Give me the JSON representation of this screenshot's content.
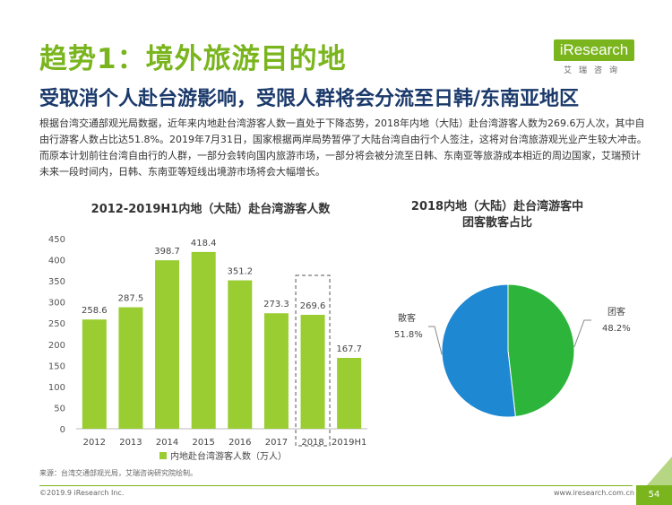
{
  "header": {
    "title": "趋势1：境外旅游目的地",
    "subtitle": "受取消个人赴台游影响，受限人群将会分流至日韩/东南亚地区",
    "logo_text": "iResearch",
    "logo_sub": "艾瑞咨询"
  },
  "body_text": "根据台湾交通部观光局数据，近年来内地赴台湾游客人数一直处于下降态势，2018年内地（大陆）赴台湾游客人数为269.6万人次，其中自由行游客人数占比达51.8%。2019年7月31日，国家根据两岸局势暂停了大陆台湾自由行个人签注，这将对台湾旅游观光业产生较大冲击。而原本计划前往台湾自由行的人群，一部分会转向国内旅游市场，一部分将会被分流至日韩、东南亚等旅游成本相近的周边国家，艾瑞预计未来一段时间内，日韩、东南亚等短线出境游市场将会大幅增长。",
  "footer": {
    "source": "来源：台湾交通部观光局，艾瑞咨询研究院绘制。",
    "copyright": "©2019.9 iResearch Inc.",
    "website": "www.iresearch.com.cn",
    "page": "54"
  },
  "colors": {
    "accent": "#7ab51d",
    "bar": "#9acd32",
    "pie_group": "#2cb53a",
    "pie_independent": "#1e88d2",
    "subtitle": "#1b3a6b"
  },
  "chart_data": [
    {
      "type": "bar",
      "title": "2012-2019H1内地（大陆）赴台湾游客人数",
      "categories": [
        "2012",
        "2013",
        "2014",
        "2015",
        "2016",
        "2017",
        "2018",
        "2019H1"
      ],
      "series": [
        {
          "name": "内地赴台湾游客人数（万人）",
          "values": [
            258.6,
            287.5,
            398.7,
            418.4,
            351.2,
            273.3,
            269.6,
            167.7
          ]
        }
      ],
      "value_labels": [
        "258.6",
        "287.5",
        "398.7",
        "418.4",
        "351.2",
        "273.3",
        "269.6",
        "167.7"
      ],
      "y_ticks": [
        "0",
        "50",
        "100",
        "150",
        "200",
        "250",
        "300",
        "350",
        "400",
        "450"
      ],
      "ylim": [
        0,
        450
      ],
      "highlight_category": "2018",
      "legend_position": "bottom"
    },
    {
      "type": "pie",
      "title_line1": "2018内地（大陆）赴台湾游客中",
      "title_line2": "团客散客占比",
      "slices": [
        {
          "name": "团客",
          "value": 48.2,
          "label": "48.2%"
        },
        {
          "name": "散客",
          "value": 51.8,
          "label": "51.8%"
        }
      ]
    }
  ]
}
